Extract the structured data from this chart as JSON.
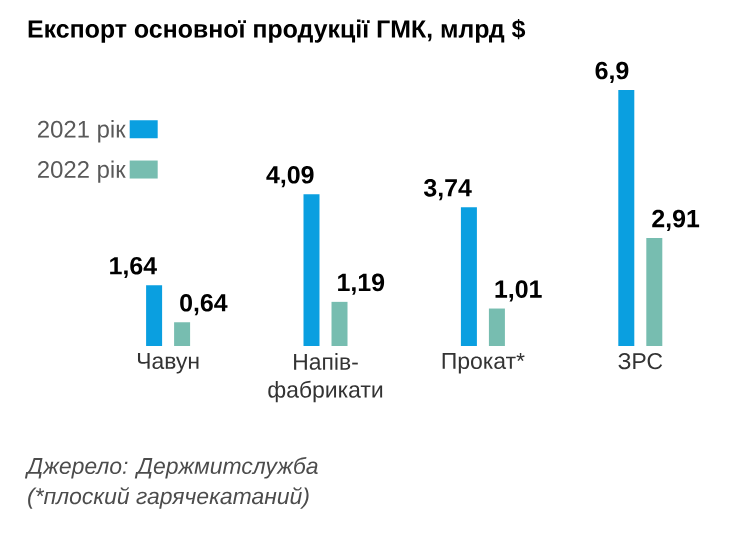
{
  "chart_data": {
    "type": "bar",
    "title": "Експорт основної продукції ГМК, млрд $",
    "categories": [
      "Чавун",
      "Напів-фабрикати",
      "Прокат*",
      "ЗРС"
    ],
    "series": [
      {
        "name": "2021 рік",
        "color": "#0a9fe0",
        "values": [
          1.64,
          4.09,
          3.74,
          6.9
        ],
        "value_labels": [
          "1,64",
          "4,09",
          "3,74",
          "6,9"
        ]
      },
      {
        "name": "2022 рік",
        "color": "#77bdb0",
        "values": [
          0.64,
          1.19,
          1.01,
          2.91
        ],
        "value_labels": [
          "0,64",
          "1,19",
          "1,01",
          "2,91"
        ]
      }
    ],
    "legend": "top left",
    "annotations": [
      "Джерело: Держмитслужба",
      "(*плоский гарячекатаний)"
    ]
  }
}
